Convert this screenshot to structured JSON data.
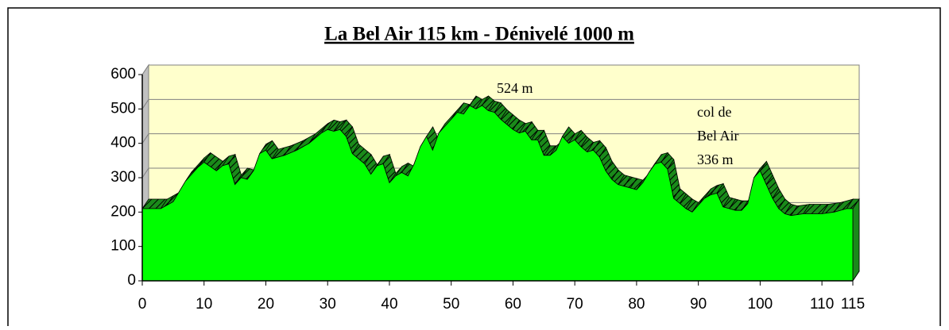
{
  "chart_data": {
    "type": "area",
    "title": "La Bel Air 115 km - Dénivelé 1000 m",
    "x": [
      0,
      3,
      4,
      5,
      7,
      9,
      10,
      12,
      13,
      14,
      15,
      16,
      17,
      18,
      19,
      20,
      21,
      23,
      25,
      27,
      29,
      30,
      31,
      32,
      33,
      34,
      36,
      37,
      38,
      39,
      40,
      41,
      42,
      43,
      44,
      45,
      46,
      47,
      48,
      50,
      51,
      52,
      53,
      54,
      55,
      56,
      57,
      58,
      59,
      60,
      61,
      62,
      63,
      64,
      65,
      66,
      67,
      68,
      69,
      70,
      71,
      72,
      73,
      74,
      75,
      76,
      77,
      78,
      79,
      80,
      81,
      82,
      83,
      84,
      85,
      86,
      87,
      88,
      89,
      90,
      91,
      92,
      93,
      94,
      95,
      96,
      97,
      98,
      99,
      100,
      101,
      102,
      103,
      104,
      105,
      107,
      110,
      112,
      114,
      115
    ],
    "values": [
      210,
      210,
      220,
      230,
      290,
      330,
      345,
      320,
      335,
      340,
      280,
      300,
      295,
      320,
      370,
      380,
      355,
      365,
      380,
      400,
      430,
      440,
      435,
      440,
      420,
      370,
      340,
      310,
      335,
      340,
      285,
      305,
      315,
      305,
      340,
      390,
      420,
      380,
      430,
      470,
      490,
      485,
      510,
      500,
      510,
      495,
      490,
      470,
      455,
      440,
      430,
      435,
      410,
      410,
      365,
      365,
      380,
      420,
      400,
      410,
      390,
      375,
      380,
      360,
      320,
      295,
      280,
      275,
      270,
      265,
      285,
      315,
      340,
      345,
      325,
      240,
      225,
      210,
      200,
      220,
      240,
      250,
      255,
      215,
      210,
      205,
      205,
      225,
      300,
      320,
      280,
      240,
      210,
      195,
      190,
      195,
      195,
      200,
      210,
      210
    ],
    "color": "#00ff00",
    "xlim": [
      0,
      115
    ],
    "xticks": [
      0,
      10,
      20,
      30,
      40,
      50,
      60,
      70,
      80,
      90,
      100,
      110,
      115
    ],
    "ylim": [
      0,
      600
    ],
    "yticks": [
      0,
      100,
      200,
      300,
      400,
      500,
      600
    ],
    "grid": true,
    "annotations": [
      "524 m",
      "col de",
      "Bel Air",
      "336 m"
    ]
  }
}
